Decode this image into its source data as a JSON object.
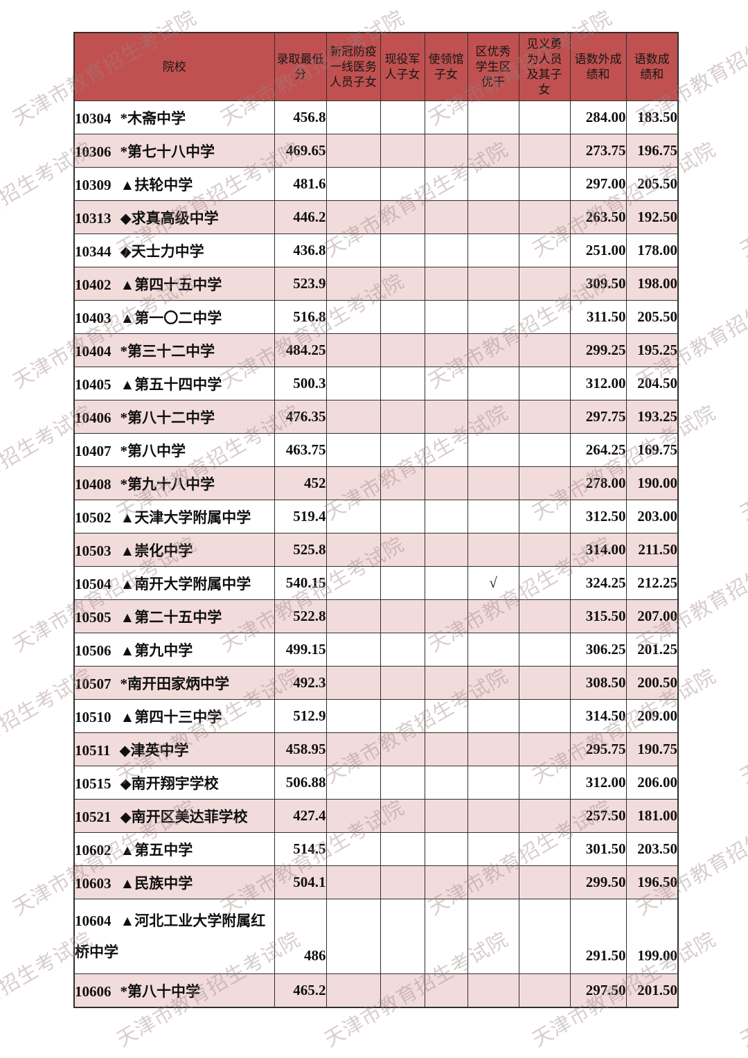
{
  "watermark": {
    "text": "天津市教育招生考试院"
  },
  "colors": {
    "header_bg": "#C05150",
    "row_alt_bg": "#F2DCDB",
    "border": "#2E2E2E",
    "watermark": "#C8B4B6",
    "text": "#0F0F0F"
  },
  "table": {
    "columns": [
      {
        "key": "school",
        "label": "院校"
      },
      {
        "key": "min_score",
        "label": "录取最低分"
      },
      {
        "key": "covid",
        "label": "新冠防疫一线医务人员子女"
      },
      {
        "key": "military",
        "label": "现役军人子女"
      },
      {
        "key": "embassy",
        "label": "使领馆子女"
      },
      {
        "key": "outstanding",
        "label": "区优秀学生区优干"
      },
      {
        "key": "brave",
        "label": "见义勇为人员及其子女"
      },
      {
        "key": "sum_cme",
        "label": "语数外成绩和"
      },
      {
        "key": "sum_cm",
        "label": "语数成绩和"
      }
    ],
    "rows": [
      {
        "code": "10304",
        "name": "*木斋中学",
        "min_score": "456.8",
        "covid": "",
        "military": "",
        "embassy": "",
        "outstanding": "",
        "brave": "",
        "sum_cme": "284.00",
        "sum_cm": "183.50"
      },
      {
        "code": "10306",
        "name": "*第七十八中学",
        "min_score": "469.65",
        "covid": "",
        "military": "",
        "embassy": "",
        "outstanding": "",
        "brave": "",
        "sum_cme": "273.75",
        "sum_cm": "196.75"
      },
      {
        "code": "10309",
        "name": "▲扶轮中学",
        "min_score": "481.6",
        "covid": "",
        "military": "",
        "embassy": "",
        "outstanding": "",
        "brave": "",
        "sum_cme": "297.00",
        "sum_cm": "205.50"
      },
      {
        "code": "10313",
        "name": "◆求真高级中学",
        "min_score": "446.2",
        "covid": "",
        "military": "",
        "embassy": "",
        "outstanding": "",
        "brave": "",
        "sum_cme": "263.50",
        "sum_cm": "192.50"
      },
      {
        "code": "10344",
        "name": "◆天士力中学",
        "min_score": "436.8",
        "covid": "",
        "military": "",
        "embassy": "",
        "outstanding": "",
        "brave": "",
        "sum_cme": "251.00",
        "sum_cm": "178.00"
      },
      {
        "code": "10402",
        "name": "▲第四十五中学",
        "min_score": "523.9",
        "covid": "",
        "military": "",
        "embassy": "",
        "outstanding": "",
        "brave": "",
        "sum_cme": "309.50",
        "sum_cm": "198.00"
      },
      {
        "code": "10403",
        "name": "▲第一〇二中学",
        "min_score": "516.8",
        "covid": "",
        "military": "",
        "embassy": "",
        "outstanding": "",
        "brave": "",
        "sum_cme": "311.50",
        "sum_cm": "205.50"
      },
      {
        "code": "10404",
        "name": "*第三十二中学",
        "min_score": "484.25",
        "covid": "",
        "military": "",
        "embassy": "",
        "outstanding": "",
        "brave": "",
        "sum_cme": "299.25",
        "sum_cm": "195.25"
      },
      {
        "code": "10405",
        "name": "▲第五十四中学",
        "min_score": "500.3",
        "covid": "",
        "military": "",
        "embassy": "",
        "outstanding": "",
        "brave": "",
        "sum_cme": "312.00",
        "sum_cm": "204.50"
      },
      {
        "code": "10406",
        "name": "*第八十二中学",
        "min_score": "476.35",
        "covid": "",
        "military": "",
        "embassy": "",
        "outstanding": "",
        "brave": "",
        "sum_cme": "297.75",
        "sum_cm": "193.25"
      },
      {
        "code": "10407",
        "name": "*第八中学",
        "min_score": "463.75",
        "covid": "",
        "military": "",
        "embassy": "",
        "outstanding": "",
        "brave": "",
        "sum_cme": "264.25",
        "sum_cm": "169.75"
      },
      {
        "code": "10408",
        "name": "*第九十八中学",
        "min_score": "452",
        "covid": "",
        "military": "",
        "embassy": "",
        "outstanding": "",
        "brave": "",
        "sum_cme": "278.00",
        "sum_cm": "190.00"
      },
      {
        "code": "10502",
        "name": "▲天津大学附属中学",
        "min_score": "519.4",
        "covid": "",
        "military": "",
        "embassy": "",
        "outstanding": "",
        "brave": "",
        "sum_cme": "312.50",
        "sum_cm": "203.00"
      },
      {
        "code": "10503",
        "name": "▲崇化中学",
        "min_score": "525.8",
        "covid": "",
        "military": "",
        "embassy": "",
        "outstanding": "",
        "brave": "",
        "sum_cme": "314.00",
        "sum_cm": "211.50"
      },
      {
        "code": "10504",
        "name": "▲南开大学附属中学",
        "min_score": "540.15",
        "covid": "",
        "military": "",
        "embassy": "",
        "outstanding": "√",
        "brave": "",
        "sum_cme": "324.25",
        "sum_cm": "212.25"
      },
      {
        "code": "10505",
        "name": "▲第二十五中学",
        "min_score": "522.8",
        "covid": "",
        "military": "",
        "embassy": "",
        "outstanding": "",
        "brave": "",
        "sum_cme": "315.50",
        "sum_cm": "207.00"
      },
      {
        "code": "10506",
        "name": "▲第九中学",
        "min_score": "499.15",
        "covid": "",
        "military": "",
        "embassy": "",
        "outstanding": "",
        "brave": "",
        "sum_cme": "306.25",
        "sum_cm": "201.25"
      },
      {
        "code": "10507",
        "name": "*南开田家炳中学",
        "min_score": "492.3",
        "covid": "",
        "military": "",
        "embassy": "",
        "outstanding": "",
        "brave": "",
        "sum_cme": "308.50",
        "sum_cm": "200.50"
      },
      {
        "code": "10510",
        "name": "▲第四十三中学",
        "min_score": "512.9",
        "covid": "",
        "military": "",
        "embassy": "",
        "outstanding": "",
        "brave": "",
        "sum_cme": "314.50",
        "sum_cm": "209.00"
      },
      {
        "code": "10511",
        "name": "◆津英中学",
        "min_score": "458.95",
        "covid": "",
        "military": "",
        "embassy": "",
        "outstanding": "",
        "brave": "",
        "sum_cme": "295.75",
        "sum_cm": "190.75"
      },
      {
        "code": "10515",
        "name": "◆南开翔宇学校",
        "min_score": "506.88",
        "covid": "",
        "military": "",
        "embassy": "",
        "outstanding": "",
        "brave": "",
        "sum_cme": "312.00",
        "sum_cm": "206.00"
      },
      {
        "code": "10521",
        "name": "◆南开区美达菲学校",
        "min_score": "427.4",
        "covid": "",
        "military": "",
        "embassy": "",
        "outstanding": "",
        "brave": "",
        "sum_cme": "257.50",
        "sum_cm": "181.00"
      },
      {
        "code": "10602",
        "name": "▲第五中学",
        "min_score": "514.5",
        "covid": "",
        "military": "",
        "embassy": "",
        "outstanding": "",
        "brave": "",
        "sum_cme": "301.50",
        "sum_cm": "203.50"
      },
      {
        "code": "10603",
        "name": "▲民族中学",
        "min_score": "504.1",
        "covid": "",
        "military": "",
        "embassy": "",
        "outstanding": "",
        "brave": "",
        "sum_cme": "299.50",
        "sum_cm": "196.50"
      },
      {
        "code": "10604",
        "name": "▲河北工业大学附属红桥中学",
        "min_score": "486",
        "covid": "",
        "military": "",
        "embassy": "",
        "outstanding": "",
        "brave": "",
        "sum_cme": "291.50",
        "sum_cm": "199.00"
      },
      {
        "code": "10606",
        "name": "*第八十中学",
        "min_score": "465.2",
        "covid": "",
        "military": "",
        "embassy": "",
        "outstanding": "",
        "brave": "",
        "sum_cme": "297.50",
        "sum_cm": "201.50"
      }
    ]
  }
}
